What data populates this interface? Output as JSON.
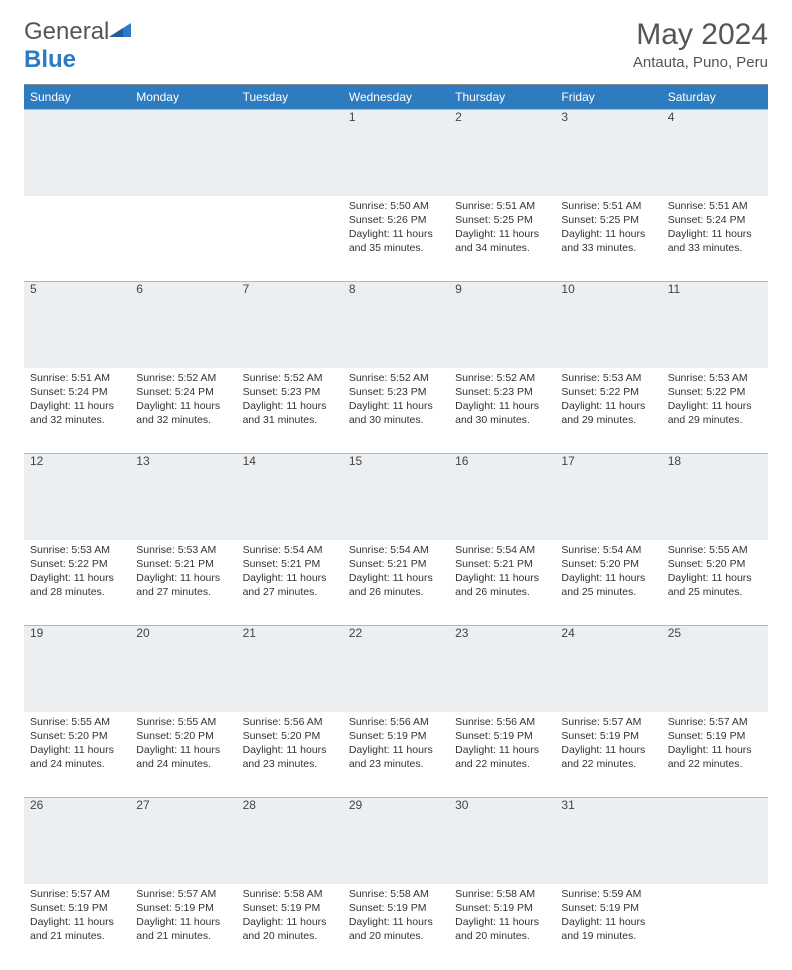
{
  "brand": {
    "name_gray": "General",
    "name_blue": "Blue"
  },
  "title": "May 2024",
  "location": "Antauta, Puno, Peru",
  "colors": {
    "header_bg": "#2e7cc0",
    "header_text": "#ffffff",
    "daynum_bg": "#eceff2",
    "rule": "#888888",
    "text": "#333333",
    "logo_blue": "#2b7cc4"
  },
  "dayHeaders": [
    "Sunday",
    "Monday",
    "Tuesday",
    "Wednesday",
    "Thursday",
    "Friday",
    "Saturday"
  ],
  "weeks": [
    [
      {
        "num": "",
        "detail": ""
      },
      {
        "num": "",
        "detail": ""
      },
      {
        "num": "",
        "detail": ""
      },
      {
        "num": "1",
        "detail": "Sunrise: 5:50 AM\nSunset: 5:26 PM\nDaylight: 11 hours and 35 minutes."
      },
      {
        "num": "2",
        "detail": "Sunrise: 5:51 AM\nSunset: 5:25 PM\nDaylight: 11 hours and 34 minutes."
      },
      {
        "num": "3",
        "detail": "Sunrise: 5:51 AM\nSunset: 5:25 PM\nDaylight: 11 hours and 33 minutes."
      },
      {
        "num": "4",
        "detail": "Sunrise: 5:51 AM\nSunset: 5:24 PM\nDaylight: 11 hours and 33 minutes."
      }
    ],
    [
      {
        "num": "5",
        "detail": "Sunrise: 5:51 AM\nSunset: 5:24 PM\nDaylight: 11 hours and 32 minutes."
      },
      {
        "num": "6",
        "detail": "Sunrise: 5:52 AM\nSunset: 5:24 PM\nDaylight: 11 hours and 32 minutes."
      },
      {
        "num": "7",
        "detail": "Sunrise: 5:52 AM\nSunset: 5:23 PM\nDaylight: 11 hours and 31 minutes."
      },
      {
        "num": "8",
        "detail": "Sunrise: 5:52 AM\nSunset: 5:23 PM\nDaylight: 11 hours and 30 minutes."
      },
      {
        "num": "9",
        "detail": "Sunrise: 5:52 AM\nSunset: 5:23 PM\nDaylight: 11 hours and 30 minutes."
      },
      {
        "num": "10",
        "detail": "Sunrise: 5:53 AM\nSunset: 5:22 PM\nDaylight: 11 hours and 29 minutes."
      },
      {
        "num": "11",
        "detail": "Sunrise: 5:53 AM\nSunset: 5:22 PM\nDaylight: 11 hours and 29 minutes."
      }
    ],
    [
      {
        "num": "12",
        "detail": "Sunrise: 5:53 AM\nSunset: 5:22 PM\nDaylight: 11 hours and 28 minutes."
      },
      {
        "num": "13",
        "detail": "Sunrise: 5:53 AM\nSunset: 5:21 PM\nDaylight: 11 hours and 27 minutes."
      },
      {
        "num": "14",
        "detail": "Sunrise: 5:54 AM\nSunset: 5:21 PM\nDaylight: 11 hours and 27 minutes."
      },
      {
        "num": "15",
        "detail": "Sunrise: 5:54 AM\nSunset: 5:21 PM\nDaylight: 11 hours and 26 minutes."
      },
      {
        "num": "16",
        "detail": "Sunrise: 5:54 AM\nSunset: 5:21 PM\nDaylight: 11 hours and 26 minutes."
      },
      {
        "num": "17",
        "detail": "Sunrise: 5:54 AM\nSunset: 5:20 PM\nDaylight: 11 hours and 25 minutes."
      },
      {
        "num": "18",
        "detail": "Sunrise: 5:55 AM\nSunset: 5:20 PM\nDaylight: 11 hours and 25 minutes."
      }
    ],
    [
      {
        "num": "19",
        "detail": "Sunrise: 5:55 AM\nSunset: 5:20 PM\nDaylight: 11 hours and 24 minutes."
      },
      {
        "num": "20",
        "detail": "Sunrise: 5:55 AM\nSunset: 5:20 PM\nDaylight: 11 hours and 24 minutes."
      },
      {
        "num": "21",
        "detail": "Sunrise: 5:56 AM\nSunset: 5:20 PM\nDaylight: 11 hours and 23 minutes."
      },
      {
        "num": "22",
        "detail": "Sunrise: 5:56 AM\nSunset: 5:19 PM\nDaylight: 11 hours and 23 minutes."
      },
      {
        "num": "23",
        "detail": "Sunrise: 5:56 AM\nSunset: 5:19 PM\nDaylight: 11 hours and 22 minutes."
      },
      {
        "num": "24",
        "detail": "Sunrise: 5:57 AM\nSunset: 5:19 PM\nDaylight: 11 hours and 22 minutes."
      },
      {
        "num": "25",
        "detail": "Sunrise: 5:57 AM\nSunset: 5:19 PM\nDaylight: 11 hours and 22 minutes."
      }
    ],
    [
      {
        "num": "26",
        "detail": "Sunrise: 5:57 AM\nSunset: 5:19 PM\nDaylight: 11 hours and 21 minutes."
      },
      {
        "num": "27",
        "detail": "Sunrise: 5:57 AM\nSunset: 5:19 PM\nDaylight: 11 hours and 21 minutes."
      },
      {
        "num": "28",
        "detail": "Sunrise: 5:58 AM\nSunset: 5:19 PM\nDaylight: 11 hours and 20 minutes."
      },
      {
        "num": "29",
        "detail": "Sunrise: 5:58 AM\nSunset: 5:19 PM\nDaylight: 11 hours and 20 minutes."
      },
      {
        "num": "30",
        "detail": "Sunrise: 5:58 AM\nSunset: 5:19 PM\nDaylight: 11 hours and 20 minutes."
      },
      {
        "num": "31",
        "detail": "Sunrise: 5:59 AM\nSunset: 5:19 PM\nDaylight: 11 hours and 19 minutes."
      },
      {
        "num": "",
        "detail": ""
      }
    ]
  ]
}
